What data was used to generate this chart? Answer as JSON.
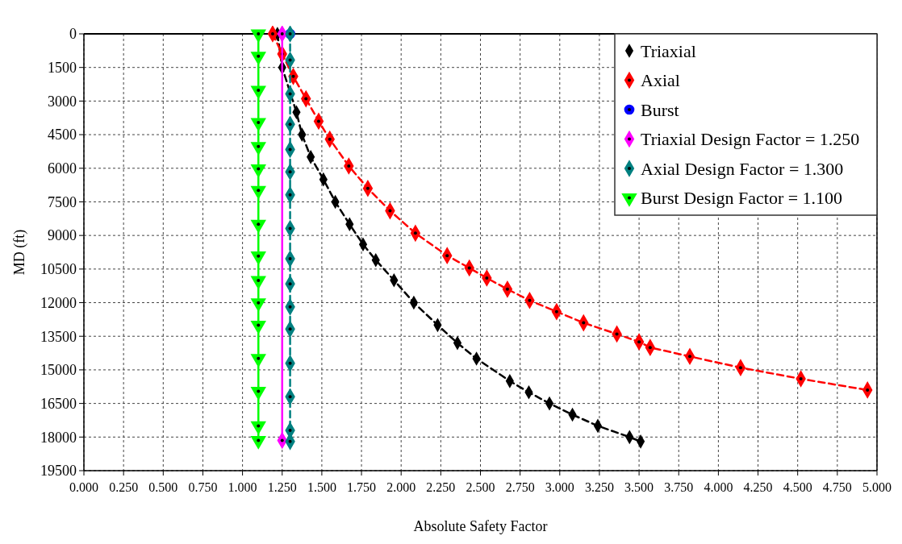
{
  "chart_data": {
    "type": "line",
    "xlabel": "Absolute Safety Factor",
    "ylabel": "MD (ft)",
    "xlim": [
      0,
      5
    ],
    "ylim": [
      19500,
      0
    ],
    "xticks": [
      {
        "value": 0,
        "label": "0.000"
      },
      {
        "value": 0.25,
        "label": "0.250"
      },
      {
        "value": 0.5,
        "label": "0.500"
      },
      {
        "value": 0.75,
        "label": "0.750"
      },
      {
        "value": 1,
        "label": "1.000"
      },
      {
        "value": 1.25,
        "label": "1.250"
      },
      {
        "value": 1.5,
        "label": "1.500"
      },
      {
        "value": 1.75,
        "label": "1.750"
      },
      {
        "value": 2,
        "label": "2.000"
      },
      {
        "value": 2.25,
        "label": "2.250"
      },
      {
        "value": 2.5,
        "label": "2.500"
      },
      {
        "value": 2.75,
        "label": "2.750"
      },
      {
        "value": 3,
        "label": "3.000"
      },
      {
        "value": 3.25,
        "label": "3.250"
      },
      {
        "value": 3.5,
        "label": "3.500"
      },
      {
        "value": 3.75,
        "label": "3.750"
      },
      {
        "value": 4,
        "label": "4.000"
      },
      {
        "value": 4.25,
        "label": "4.250"
      },
      {
        "value": 4.5,
        "label": "4.500"
      },
      {
        "value": 4.75,
        "label": "4.750"
      },
      {
        "value": 5,
        "label": "5.000"
      }
    ],
    "yticks": [
      0,
      1500,
      3000,
      4500,
      6000,
      7500,
      9000,
      10500,
      12000,
      13500,
      15000,
      16500,
      18000,
      19500
    ],
    "grid": true,
    "legend": "top right",
    "series": [
      {
        "name": "Triaxial",
        "color": "#000000",
        "marker": "diamond",
        "line_style": "dashed",
        "x": [
          1.22,
          1.25,
          1.34,
          1.375,
          1.43,
          1.51,
          1.585,
          1.675,
          1.76,
          1.84,
          1.955,
          2.08,
          2.23,
          2.355,
          2.475,
          2.685,
          2.805,
          2.935,
          3.08,
          3.24,
          3.44,
          3.51
        ],
        "values": [
          0,
          1500,
          3500,
          4500,
          5500,
          6500,
          7500,
          8500,
          9400,
          10100,
          11000,
          12000,
          13000,
          13800,
          14500,
          15500,
          16000,
          16500,
          17000,
          17500,
          18000,
          18200
        ]
      },
      {
        "name": "Axial",
        "color": "#ff0000",
        "marker": "diamond",
        "line_style": "dashed",
        "x": [
          1.19,
          1.25,
          1.32,
          1.4,
          1.48,
          1.55,
          1.67,
          1.79,
          1.93,
          2.09,
          2.29,
          2.43,
          2.54,
          2.67,
          2.81,
          2.98,
          3.15,
          3.36,
          3.5,
          3.57,
          3.82,
          4.14,
          4.52,
          4.94
        ],
        "values": [
          0,
          900,
          1900,
          2900,
          3900,
          4700,
          5900,
          6900,
          7900,
          8900,
          9900,
          10450,
          10900,
          11400,
          11900,
          12400,
          12900,
          13400,
          13750,
          14000,
          14400,
          14900,
          15400,
          15900
        ]
      },
      {
        "name": "Burst",
        "color": "#0000ff",
        "marker": "circle",
        "x": [
          1.3
        ],
        "values": [
          0
        ]
      },
      {
        "name": "Triaxial Design Factor = 1.250",
        "color": "#ff00ff",
        "marker": "diamond",
        "line_style": "solid",
        "x": [
          1.25,
          1.25
        ],
        "values": [
          0,
          18150
        ]
      },
      {
        "name": "Axial Design Factor = 1.300",
        "color": "#008080",
        "marker": "diamond",
        "line_style": "dashed",
        "x": [
          1.3,
          1.3,
          1.3,
          1.3,
          1.3,
          1.3,
          1.3,
          1.3,
          1.3,
          1.3,
          1.3,
          1.3,
          1.3,
          1.3,
          1.3,
          1.3
        ],
        "values": [
          0,
          1170,
          2680,
          4040,
          5160,
          6160,
          7190,
          8690,
          10040,
          11160,
          12190,
          13180,
          14710,
          16200,
          17700,
          18200
        ]
      },
      {
        "name": "Burst Design Factor = 1.100",
        "color": "#00ff00",
        "marker": "triangle",
        "line_style": "solid",
        "x": [
          1.1,
          1.1,
          1.1,
          1.1,
          1.1,
          1.1,
          1.1,
          1.1,
          1.1,
          1.1,
          1.1,
          1.1,
          1.1,
          1.1,
          1.1,
          1.1
        ],
        "values": [
          0,
          1000,
          2520,
          3960,
          5030,
          6030,
          6990,
          8500,
          9920,
          11010,
          12010,
          13010,
          14490,
          15960,
          17500,
          18150
        ]
      }
    ]
  }
}
